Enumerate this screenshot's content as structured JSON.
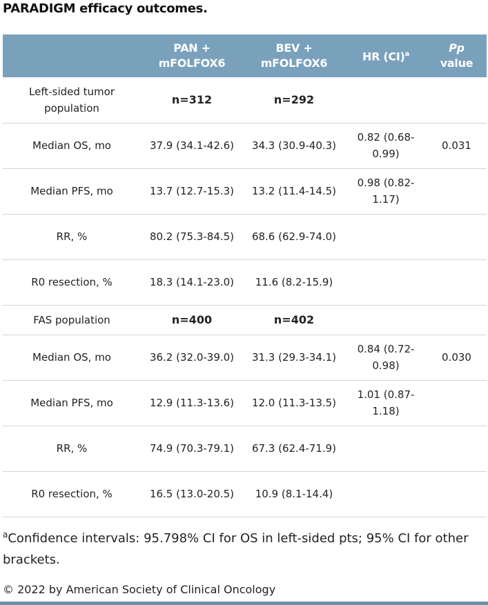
{
  "title": "PARADIGM efficacy outcomes.",
  "header": {
    "col0": "",
    "col1_line1": "PAN +",
    "col1_line2": "mFOLFOX6",
    "col2_line1": "BEV +",
    "col2_line2": "mFOLFOX6",
    "col3": "HR (CI)",
    "col3_sup": "a",
    "col4_line1": "P",
    "col4_line1b": "p",
    "col4_line2": "value"
  },
  "rows": [
    {
      "label": "Left-sided tumor population",
      "pan": "n=312",
      "bev": "n=292",
      "hr": "",
      "p": ""
    },
    {
      "label": "Median OS, mo",
      "pan": "37.9 (34.1-42.6)",
      "bev": "34.3 (30.9-40.3)",
      "hr": "0.82 (0.68-0.99)",
      "p": "0.031"
    },
    {
      "label": "Median PFS, mo",
      "pan": "13.7 (12.7-15.3)",
      "bev": "13.2 (11.4-14.5)",
      "hr": "0.98 (0.82-1.17)",
      "p": ""
    },
    {
      "label": "RR, %",
      "pan": "80.2 (75.3-84.5)",
      "bev": "68.6 (62.9-74.0)",
      "hr": "",
      "p": ""
    },
    {
      "label": "R0 resection, %",
      "pan": "18.3 (14.1-23.0)",
      "bev": "11.6 (8.2-15.9)",
      "hr": "",
      "p": ""
    },
    {
      "label": "FAS population",
      "pan": "n=400",
      "bev": "n=402",
      "hr": "",
      "p": ""
    },
    {
      "label": "Median OS, mo",
      "pan": "36.2 (32.0-39.0)",
      "bev": "31.3 (29.3-34.1)",
      "hr": "0.84 (0.72-0.98)",
      "p": "0.030"
    },
    {
      "label": "Median PFS, mo",
      "pan": "12.9 (11.3-13.6)",
      "bev": "12.0 (11.3-13.5)",
      "hr": "1.01 (0.87-1.18)",
      "p": ""
    },
    {
      "label": "RR, %",
      "pan": "74.9 (70.3-79.1)",
      "bev": "67.3 (62.4-71.9)",
      "hr": "",
      "p": ""
    },
    {
      "label": "R0 resection, %",
      "pan": "16.5 (13.0-20.5)",
      "bev": "10.9 (8.1-14.4)",
      "hr": "",
      "p": ""
    }
  ],
  "footnote": {
    "sup": "a",
    "text": "Confidence intervals: 95.798% CI for OS in left-sided pts; 95% CI for other brackets."
  },
  "copyright": "© 2022 by American Society of Clinical Oncology",
  "colors": {
    "header_bg": "#7aa1bc",
    "bottom_bar": "#6d8fa8"
  }
}
